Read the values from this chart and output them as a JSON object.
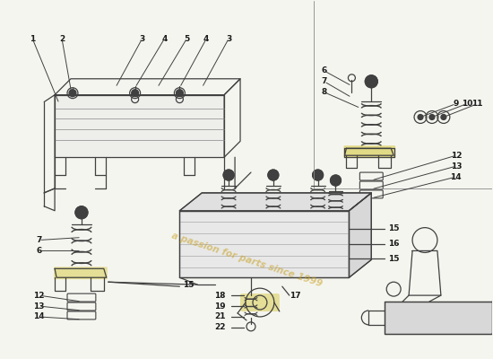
{
  "bg": "#f5f5f0",
  "lc": "#404040",
  "lw": 0.9,
  "wm_text": "a passion for parts since 1999",
  "wm_color": "#c8a020",
  "wm_alpha": 0.55,
  "label_fs": 6.5,
  "label_color": "#1a1a1a",
  "sep_line_color": "#888888",
  "highlight_color": "#d4c840"
}
